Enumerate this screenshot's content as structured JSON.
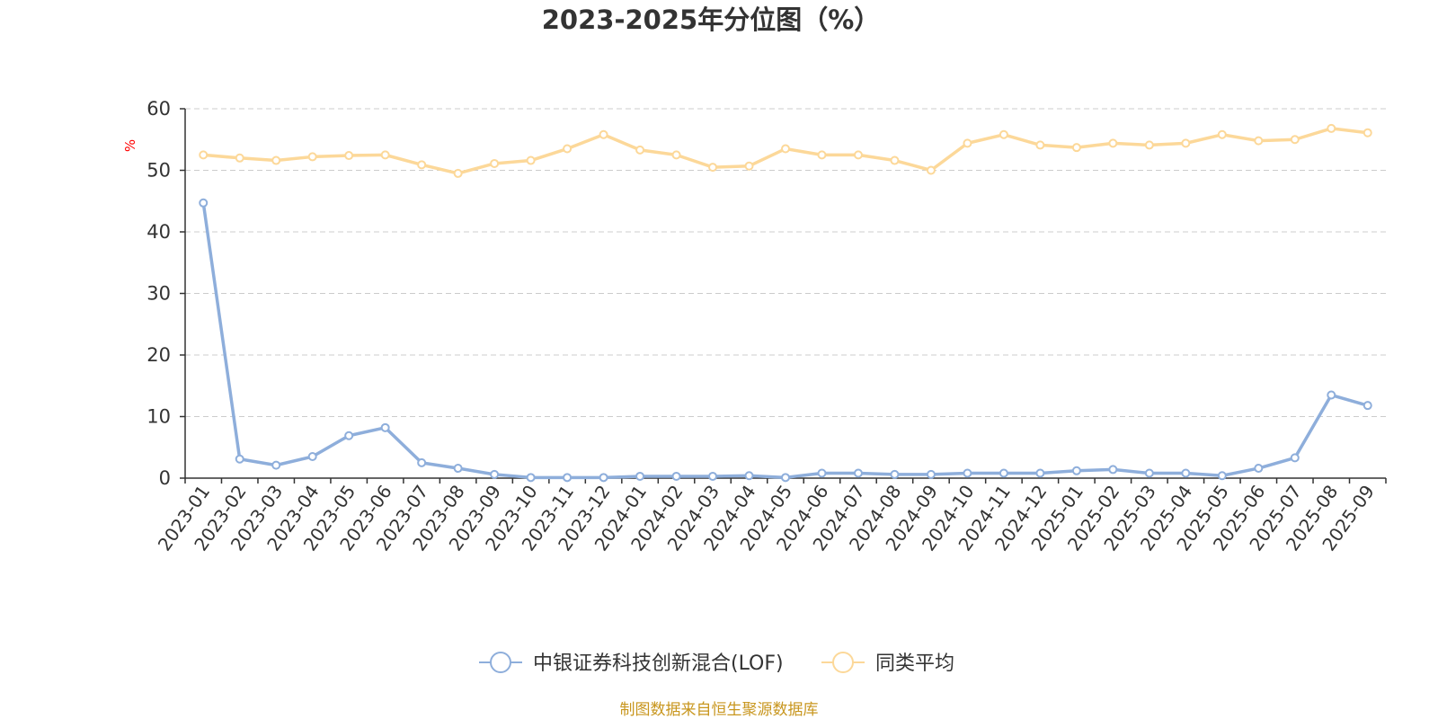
{
  "chart_data": {
    "type": "line",
    "title": "2023-2025年分位图（%）",
    "ylabel": "%",
    "ylim": [
      0,
      60
    ],
    "yticks": [
      0,
      10,
      20,
      30,
      40,
      50,
      60
    ],
    "grid": true,
    "legend_position": "bottom",
    "categories": [
      "2023-01",
      "2023-02",
      "2023-03",
      "2023-04",
      "2023-05",
      "2023-06",
      "2023-07",
      "2023-08",
      "2023-09",
      "2023-10",
      "2023-11",
      "2023-12",
      "2024-01",
      "2024-02",
      "2024-03",
      "2024-04",
      "2024-05",
      "2024-06",
      "2024-07",
      "2024-08",
      "2024-09",
      "2024-10",
      "2024-11",
      "2024-12",
      "2025-01",
      "2025-02",
      "2025-03",
      "2025-04",
      "2025-05",
      "2025-06",
      "2025-07",
      "2025-08",
      "2025-09"
    ],
    "series": [
      {
        "name": "中银证券科技创新混合(LOF)",
        "color": "#8eaedb",
        "values": [
          44.7,
          3.1,
          2.1,
          3.5,
          6.9,
          8.2,
          2.5,
          1.6,
          0.6,
          0.1,
          0.1,
          0.1,
          0.3,
          0.3,
          0.3,
          0.4,
          0.1,
          0.8,
          0.8,
          0.6,
          0.6,
          0.8,
          0.8,
          0.8,
          1.2,
          1.4,
          0.8,
          0.8,
          0.4,
          1.6,
          3.3,
          13.5,
          11.8
        ]
      },
      {
        "name": "同类平均",
        "color": "#fcd899",
        "values": [
          52.5,
          52.0,
          51.6,
          52.2,
          52.4,
          52.5,
          50.9,
          49.5,
          51.1,
          51.6,
          53.5,
          55.8,
          53.3,
          52.5,
          50.5,
          50.7,
          53.5,
          52.5,
          52.5,
          51.6,
          50.0,
          54.4,
          55.8,
          54.1,
          53.7,
          54.4,
          54.1,
          54.4,
          55.8,
          54.8,
          55.0,
          56.8,
          56.1
        ]
      }
    ]
  },
  "source": {
    "text": "制图数据来自恒生聚源数据库",
    "color": "#c8961e"
  },
  "colors": {
    "axis": "#333333",
    "grid": "#cccccc",
    "unit_label": "#ff0000"
  }
}
